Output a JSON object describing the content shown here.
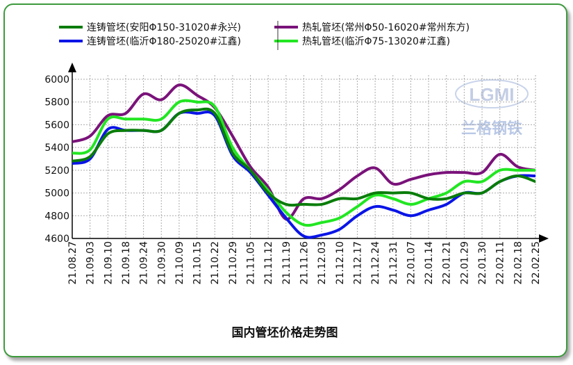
{
  "chart_data": {
    "type": "line",
    "title": "国内管坯价格走势图",
    "xlabel": "",
    "ylabel": "",
    "ylim": [
      4600,
      6000
    ],
    "yticks": [
      4600,
      4800,
      5000,
      5200,
      5400,
      5600,
      5800,
      6000
    ],
    "grid": true,
    "legend_position": "top",
    "x": [
      "21.08.27",
      "21.09.03",
      "21.09.10",
      "21.09.18",
      "21.09.24",
      "21.09.30",
      "21.10.09",
      "21.10.15",
      "21.10.22",
      "21.10.29",
      "21.11.05",
      "21.11.12",
      "21.11.19",
      "21.11.26",
      "21.12.03",
      "21.12.10",
      "21.12.17",
      "21.12.24",
      "21.12.31",
      "22.01.07",
      "22.01.14",
      "22.01.21",
      "22.01.29",
      "22.01.30",
      "22.02.11",
      "22.02.18",
      "22.02.25"
    ],
    "series": [
      {
        "name": "连铸管坯(安阳Φ150-31020#永兴)",
        "color": "#0a7d0a",
        "values": [
          5280,
          5320,
          5520,
          5550,
          5550,
          5550,
          5700,
          5730,
          5700,
          5350,
          5200,
          5000,
          4900,
          4900,
          4900,
          4950,
          4950,
          5000,
          5000,
          5000,
          4950,
          4950,
          5000,
          5000,
          5100,
          5150,
          5100
        ]
      },
      {
        "name": "连铸管坯(临沂Φ180-25020#江鑫)",
        "color": "#0a14e6",
        "values": [
          5260,
          5300,
          5560,
          5550,
          5550,
          5550,
          5700,
          5700,
          5680,
          5330,
          5180,
          4980,
          4780,
          4620,
          4630,
          4680,
          4800,
          4880,
          4850,
          4800,
          4850,
          4900,
          5000,
          5000,
          5100,
          5150,
          5150
        ]
      },
      {
        "name": "热轧管坯(常州Φ50-16020#常州东方)",
        "color": "#7a127a",
        "values": [
          5450,
          5500,
          5680,
          5700,
          5870,
          5820,
          5950,
          5860,
          5750,
          5500,
          5230,
          5050,
          4770,
          4950,
          4950,
          5030,
          5150,
          5220,
          5080,
          5120,
          5160,
          5180,
          5180,
          5180,
          5340,
          5230,
          5200
        ]
      },
      {
        "name": "热轧管坯(临沂Φ75-13020#江鑫)",
        "color": "#22e622",
        "values": [
          5350,
          5380,
          5650,
          5650,
          5650,
          5650,
          5800,
          5800,
          5760,
          5400,
          5200,
          5020,
          4830,
          4720,
          4740,
          4780,
          4880,
          4980,
          4950,
          4900,
          4950,
          5000,
          5100,
          5100,
          5200,
          5200,
          5200
        ]
      }
    ]
  },
  "watermark": {
    "logo_text": "LGMI",
    "company": "兰格钢铁"
  }
}
